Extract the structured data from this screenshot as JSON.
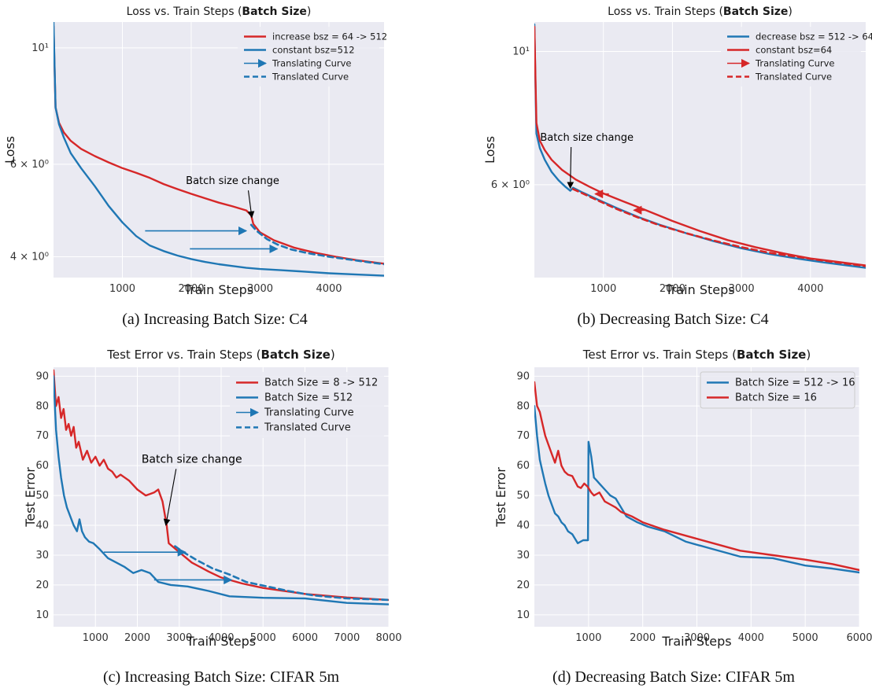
{
  "chart_data": [
    {
      "id": "a",
      "type": "line",
      "title_prefix": "Loss vs. Train Steps (",
      "title_bold": "Batch Size",
      "title_suffix": ")",
      "caption": "(a) Increasing Batch Size: C4",
      "xlabel": "Train Steps",
      "ylabel": "Loss",
      "yscale": "log",
      "xlim": [
        0,
        4800
      ],
      "ylim": [
        3.65,
        11.2
      ],
      "xticks": [
        1000,
        2000,
        3000,
        4000
      ],
      "xtick_labels": [
        "1000",
        "2000",
        "3000",
        "4000"
      ],
      "yticks": [
        4,
        6,
        10
      ],
      "ytick_labels": [
        "4 × 10⁰",
        "6 × 10⁰",
        "10¹"
      ],
      "grid": true,
      "legend_position": "top-right",
      "annotation": {
        "text": "Batch size change",
        "text_x": 2600,
        "text_y": 5.5,
        "target_x": 2880,
        "target_y": 4.75
      },
      "translation_arrows": [
        {
          "x_from": 1330,
          "x_to": 2800,
          "y": 4.48
        },
        {
          "x_from": 1980,
          "x_to": 3250,
          "y": 4.14
        }
      ],
      "series": [
        {
          "name": "increase bsz = 64 -> 512",
          "color": "#d62728",
          "style": "solid",
          "x": [
            0,
            30,
            80,
            150,
            250,
            400,
            600,
            800,
            1000,
            1200,
            1400,
            1600,
            1800,
            2000,
            2200,
            2400,
            2600,
            2800,
            2870,
            2900,
            3000,
            3200,
            3500,
            3800,
            4100,
            4400,
            4800
          ],
          "y": [
            11.0,
            7.7,
            7.2,
            6.9,
            6.65,
            6.42,
            6.22,
            6.05,
            5.9,
            5.78,
            5.65,
            5.5,
            5.38,
            5.27,
            5.17,
            5.07,
            4.99,
            4.9,
            4.8,
            4.62,
            4.45,
            4.3,
            4.16,
            4.07,
            4.0,
            3.94,
            3.88
          ]
        },
        {
          "name": "constant bsz=512",
          "color": "#1f77b4",
          "style": "solid",
          "x": [
            0,
            30,
            80,
            150,
            250,
            400,
            600,
            800,
            1000,
            1200,
            1400,
            1600,
            1800,
            2000,
            2200,
            2400,
            2600,
            2800,
            3000,
            3300,
            3600,
            4000,
            4400,
            4800
          ],
          "y": [
            11.2,
            7.7,
            7.15,
            6.75,
            6.3,
            5.9,
            5.45,
            5.0,
            4.65,
            4.38,
            4.2,
            4.1,
            4.02,
            3.96,
            3.91,
            3.87,
            3.84,
            3.81,
            3.79,
            3.77,
            3.75,
            3.72,
            3.7,
            3.68
          ]
        },
        {
          "name": "Translating Curve",
          "color": "#1f77b4",
          "style": "arrow",
          "x": [],
          "y": []
        },
        {
          "name": "Translated Curve",
          "color": "#1f77b4",
          "style": "dashed",
          "x": [
            2870,
            2950,
            3100,
            3250,
            3450,
            3700,
            4000,
            4300,
            4600,
            4800
          ],
          "y": [
            4.6,
            4.48,
            4.32,
            4.22,
            4.13,
            4.06,
            4.0,
            3.95,
            3.9,
            3.87
          ]
        }
      ]
    },
    {
      "id": "b",
      "type": "line",
      "title_prefix": "Loss vs. Train Steps (",
      "title_bold": "Batch Size",
      "title_suffix": ")",
      "caption": "(b) Decreasing Batch Size: C4",
      "xlabel": "Train Steps",
      "ylabel": "Loss",
      "yscale": "log",
      "xlim": [
        0,
        4800
      ],
      "ylim": [
        4.2,
        11.2
      ],
      "xticks": [
        1000,
        2000,
        3000,
        4000
      ],
      "xtick_labels": [
        "1000",
        "2000",
        "3000",
        "4000"
      ],
      "yticks": [
        6,
        10
      ],
      "ytick_labels": [
        "6 × 10⁰",
        "10¹"
      ],
      "grid": true,
      "legend_position": "top-right",
      "annotation": {
        "text": "Batch size change",
        "text_x": 760,
        "text_y": 7.1,
        "target_x": 520,
        "target_y": 5.92
      },
      "translation_arrows": [
        {
          "x_from": 1080,
          "x_to": 880,
          "y": 5.79
        },
        {
          "x_from": 1620,
          "x_to": 1440,
          "y": 5.44
        }
      ],
      "series": [
        {
          "name": "decrease bsz = 512 -> 64",
          "color": "#1f77b4",
          "style": "solid",
          "x": [
            0,
            30,
            80,
            150,
            250,
            350,
            450,
            520,
            560,
            700,
            900,
            1200,
            1500,
            1800,
            2200,
            2600,
            3000,
            3400,
            3800,
            4200,
            4600,
            4800
          ],
          "y": [
            11.1,
            7.3,
            6.9,
            6.6,
            6.3,
            6.1,
            5.95,
            5.86,
            5.93,
            5.82,
            5.68,
            5.48,
            5.3,
            5.15,
            4.98,
            4.83,
            4.7,
            4.6,
            4.52,
            4.45,
            4.39,
            4.36
          ]
        },
        {
          "name": "constant bsz=64",
          "color": "#d62728",
          "style": "solid",
          "x": [
            0,
            30,
            80,
            150,
            250,
            400,
            600,
            800,
            1000,
            1300,
            1600,
            2000,
            2400,
            2800,
            3200,
            3600,
            4000,
            4400,
            4800
          ],
          "y": [
            11.0,
            7.6,
            7.1,
            6.85,
            6.6,
            6.35,
            6.12,
            5.95,
            5.8,
            5.62,
            5.45,
            5.22,
            5.02,
            4.85,
            4.72,
            4.61,
            4.52,
            4.46,
            4.4
          ]
        },
        {
          "name": "Translating Curve",
          "color": "#d62728",
          "style": "arrow",
          "x": [],
          "y": []
        },
        {
          "name": "Translated Curve",
          "color": "#d62728",
          "style": "dashed",
          "x": [
            560,
            700,
            900,
            1200,
            1500,
            1800,
            2200,
            2600,
            3000,
            3400,
            3800,
            4200,
            4600,
            4800
          ],
          "y": [
            5.9,
            5.8,
            5.66,
            5.46,
            5.29,
            5.14,
            4.98,
            4.84,
            4.72,
            4.62,
            4.55,
            4.48,
            4.42,
            4.39
          ]
        }
      ]
    },
    {
      "id": "c",
      "type": "line",
      "title_prefix": "Test Error vs. Train Steps (",
      "title_bold": "Batch Size",
      "title_suffix": ")",
      "caption": "(c) Increasing Batch Size: CIFAR 5m",
      "xlabel": "Train Steps",
      "ylabel": "Test Error",
      "yscale": "linear",
      "xlim": [
        0,
        8000
      ],
      "ylim": [
        6,
        93
      ],
      "xticks": [
        1000,
        2000,
        3000,
        4000,
        5000,
        6000,
        7000,
        8000
      ],
      "xtick_labels": [
        "1000",
        "2000",
        "3000",
        "4000",
        "5000",
        "6000",
        "7000",
        "8000"
      ],
      "yticks": [
        10,
        20,
        30,
        40,
        50,
        60,
        70,
        80,
        90
      ],
      "ytick_labels": [
        "10",
        "20",
        "30",
        "40",
        "50",
        "60",
        "70",
        "80",
        "90"
      ],
      "grid": true,
      "legend_position": "top-right",
      "annotation": {
        "text": "Batch size change",
        "text_x": 3300,
        "text_y": 61,
        "target_x": 2680,
        "target_y": 40
      },
      "translation_arrows": [
        {
          "x_from": 1200,
          "x_to": 3150,
          "y": 31
        },
        {
          "x_from": 2400,
          "x_to": 4250,
          "y": 21.7
        }
      ],
      "series": [
        {
          "name": "Batch Size = 8 -> 512",
          "color": "#d62728",
          "style": "solid",
          "x": [
            0,
            60,
            120,
            180,
            240,
            300,
            360,
            420,
            480,
            540,
            600,
            700,
            800,
            900,
            1000,
            1100,
            1200,
            1300,
            1400,
            1500,
            1600,
            1700,
            1800,
            2000,
            2200,
            2300,
            2400,
            2500,
            2600,
            2700,
            2750,
            3000,
            3300,
            3700,
            4000,
            4500,
            5000,
            6000,
            7000,
            8000
          ],
          "y": [
            92,
            80,
            83,
            76,
            79,
            72,
            74,
            70,
            73,
            66,
            68,
            62,
            65,
            61,
            63,
            60,
            62,
            59,
            58,
            56,
            57,
            56,
            55,
            52,
            50,
            50.5,
            51,
            52,
            48,
            40,
            34,
            31,
            27.5,
            24.5,
            22.5,
            20.5,
            19,
            17,
            15.8,
            15
          ]
        },
        {
          "name": "Batch Size = 512",
          "color": "#1f77b4",
          "style": "solid",
          "x": [
            0,
            60,
            120,
            180,
            250,
            320,
            400,
            480,
            560,
            620,
            680,
            750,
            850,
            950,
            1100,
            1300,
            1500,
            1700,
            1900,
            2100,
            2300,
            2500,
            2800,
            3200,
            3700,
            4200,
            5000,
            6000,
            7000,
            8000
          ],
          "y": [
            90,
            72,
            63,
            56,
            50,
            46,
            43,
            40,
            38,
            42,
            38,
            36,
            34.5,
            34,
            32,
            29,
            27.5,
            26,
            24,
            25,
            24,
            21,
            20,
            19.5,
            18,
            16.2,
            15.7,
            15.5,
            14,
            13.5
          ]
        },
        {
          "name": "Translating Curve",
          "color": "#1f77b4",
          "style": "arrow",
          "x": [],
          "y": []
        },
        {
          "name": "Translated Curve",
          "color": "#1f77b4",
          "style": "dashed",
          "x": [
            2900,
            3100,
            3400,
            3800,
            4200,
            4600,
            5100,
            5600,
            6200,
            7000,
            8000
          ],
          "y": [
            33,
            31,
            28.5,
            25.5,
            23.5,
            21,
            19.5,
            18,
            16.5,
            15.5,
            15
          ]
        }
      ]
    },
    {
      "id": "d",
      "type": "line",
      "title_prefix": "Test Error vs. Train Steps (",
      "title_bold": "Batch Size",
      "title_suffix": ")",
      "caption": "(d) Decreasing Batch Size: CIFAR 5m",
      "xlabel": "Train Steps",
      "ylabel": "Test Error",
      "yscale": "linear",
      "xlim": [
        0,
        6000
      ],
      "ylim": [
        6,
        93
      ],
      "xticks": [
        1000,
        2000,
        3000,
        4000,
        5000,
        6000
      ],
      "xtick_labels": [
        "1000",
        "2000",
        "3000",
        "4000",
        "5000",
        "6000"
      ],
      "yticks": [
        10,
        20,
        30,
        40,
        50,
        60,
        70,
        80,
        90
      ],
      "ytick_labels": [
        "10",
        "20",
        "30",
        "40",
        "50",
        "60",
        "70",
        "80",
        "90"
      ],
      "grid": true,
      "legend_position": "top-right",
      "annotation": null,
      "translation_arrows": [],
      "series": [
        {
          "name": "Batch Size = 512 -> 16",
          "color": "#1f77b4",
          "style": "solid",
          "x": [
            0,
            50,
            100,
            150,
            200,
            260,
            320,
            380,
            440,
            500,
            560,
            620,
            700,
            800,
            900,
            990,
            1000,
            1050,
            1100,
            1150,
            1200,
            1300,
            1400,
            1500,
            1600,
            1700,
            1900,
            2100,
            2400,
            2800,
            3300,
            3800,
            4400,
            5000,
            5500,
            6000
          ],
          "y": [
            80,
            70,
            62,
            58,
            54,
            50,
            47,
            44,
            43,
            41,
            40,
            38,
            37,
            34,
            35,
            35,
            68,
            63,
            56,
            55,
            54,
            52,
            50,
            49,
            46,
            43,
            41,
            39.5,
            38,
            34.5,
            32,
            29.5,
            29,
            26.5,
            25.5,
            24.2
          ]
        },
        {
          "name": "Batch Size = 16",
          "color": "#d62728",
          "style": "solid",
          "x": [
            0,
            50,
            100,
            150,
            200,
            260,
            320,
            380,
            440,
            500,
            560,
            620,
            700,
            800,
            860,
            920,
            980,
            1050,
            1100,
            1150,
            1200,
            1300,
            1400,
            1500,
            1600,
            1800,
            2000,
            2400,
            2800,
            3300,
            3800,
            4400,
            5000,
            5500,
            6000
          ],
          "y": [
            88,
            80,
            78,
            74,
            70,
            67,
            64,
            61,
            65,
            60,
            58,
            57,
            56.5,
            53,
            52.5,
            54,
            53,
            51,
            50,
            50.5,
            51,
            48,
            47,
            46,
            44.5,
            43,
            41,
            38.5,
            36.5,
            34,
            31.5,
            30,
            28.5,
            27,
            25
          ]
        }
      ]
    }
  ]
}
